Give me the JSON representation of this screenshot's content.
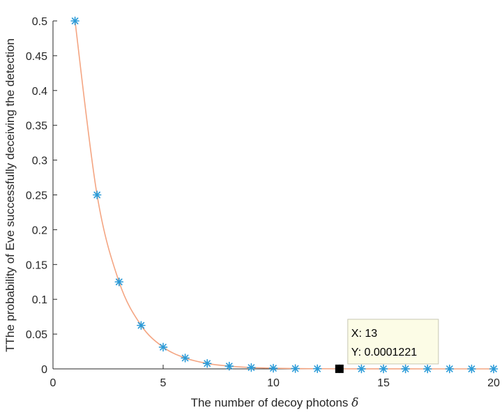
{
  "chart_data": {
    "type": "line",
    "title": "",
    "xlabel": "The number of decoy photons",
    "xlabel_symbol": "δ",
    "ylabel": "TThe probability of Eve successfully deceiving the detection",
    "xlim": [
      0,
      20
    ],
    "ylim": [
      0,
      0.5
    ],
    "x_ticks": [
      "0",
      "5",
      "10",
      "15",
      "20"
    ],
    "y_ticks": [
      "0",
      "0.05",
      "0.1",
      "0.15",
      "0.2",
      "0.25",
      "0.3",
      "0.35",
      "0.4",
      "0.45",
      "0.5"
    ],
    "grid": false,
    "line_color": "#f4a582",
    "marker": "asterisk",
    "marker_color": "#2b9bd8",
    "series": [
      {
        "x": [
          1,
          2,
          3,
          4,
          5,
          6,
          7,
          8,
          9,
          10,
          11,
          12,
          13,
          14,
          15,
          16,
          17,
          18,
          19,
          20
        ],
        "values": [
          0.5,
          0.25,
          0.125,
          0.0625,
          0.03125,
          0.015625,
          0.0078125,
          0.00390625,
          0.001953125,
          0.0009765625,
          0.00048828125,
          0.000244140625,
          0.0001220703125,
          6.103515625e-05,
          3.0517578125e-05,
          1.52587890625e-05,
          7.62939453125e-06,
          3.814697265625e-06,
          1.9073486328125e-06,
          9.5367431640625e-07
        ]
      }
    ],
    "datatip": {
      "x": 13,
      "y": 0.0001221,
      "x_text": "X: 13",
      "y_text": "Y: 0.0001221"
    }
  }
}
